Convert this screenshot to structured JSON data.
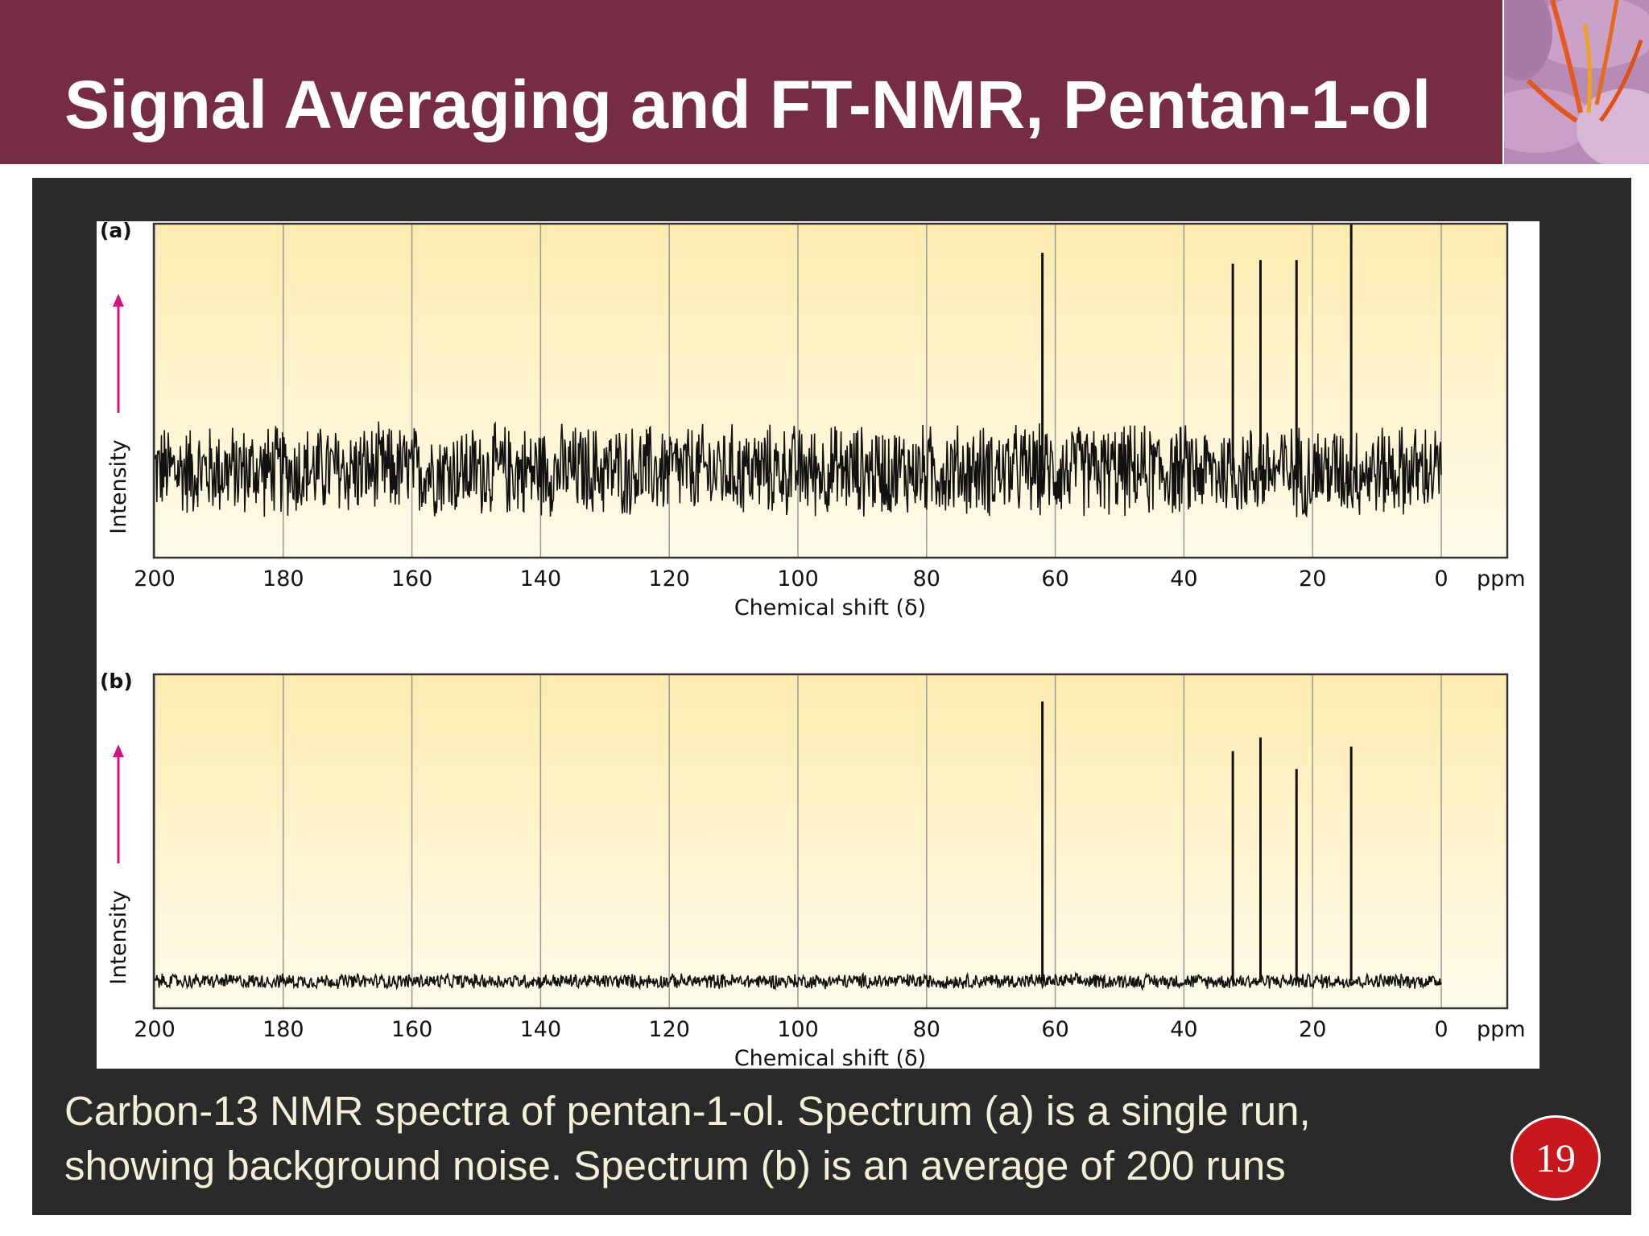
{
  "slide": {
    "title": "Signal Averaging and FT-NMR, Pentan-1-ol",
    "caption_lines": [
      "Carbon-13 NMR spectra of pentan-1-ol. Spectrum (a) is a single run,",
      "showing background noise. Spectrum (b) is an average of 200 runs"
    ],
    "page_number": "19",
    "colors": {
      "header_bg": "#762c43",
      "panel_bg": "#2a2a2a",
      "plot_bg_top": "#fdebb0",
      "plot_bg_bottom": "#fffbea",
      "intensity_arrow": "#d4137f",
      "badge": "#c8161d"
    },
    "flower_icon": "saffron-flower-icon"
  },
  "chart_data": [
    {
      "type": "line",
      "panel_label": "(a)",
      "xlabel": "Chemical shift (δ)",
      "ylabel": "Intensity",
      "x_unit": "ppm",
      "x_reversed": true,
      "xlim": [
        200,
        0
      ],
      "x_ticks": [
        200,
        180,
        160,
        140,
        120,
        100,
        80,
        60,
        40,
        20,
        0
      ],
      "ylim": [
        -1.2,
        3.4
      ],
      "grid": "vertical",
      "noise_amplitude": 0.7,
      "peaks": [
        {
          "x": 62.0,
          "y": 3.0
        },
        {
          "x": 32.4,
          "y": 2.85
        },
        {
          "x": 28.1,
          "y": 2.9
        },
        {
          "x": 22.5,
          "y": 2.9
        },
        {
          "x": 14.0,
          "y": 3.4
        }
      ]
    },
    {
      "type": "line",
      "panel_label": "(b)",
      "xlabel": "Chemical shift (δ)",
      "ylabel": "Intensity",
      "x_unit": "ppm",
      "x_reversed": true,
      "xlim": [
        200,
        0
      ],
      "x_ticks": [
        200,
        180,
        160,
        140,
        120,
        100,
        80,
        60,
        40,
        20,
        0
      ],
      "ylim": [
        -0.3,
        3.4
      ],
      "grid": "vertical",
      "noise_amplitude": 0.09,
      "peaks": [
        {
          "x": 62.0,
          "y": 3.1
        },
        {
          "x": 32.4,
          "y": 2.55
        },
        {
          "x": 28.1,
          "y": 2.7
        },
        {
          "x": 22.5,
          "y": 2.35
        },
        {
          "x": 14.0,
          "y": 2.6
        }
      ]
    }
  ]
}
